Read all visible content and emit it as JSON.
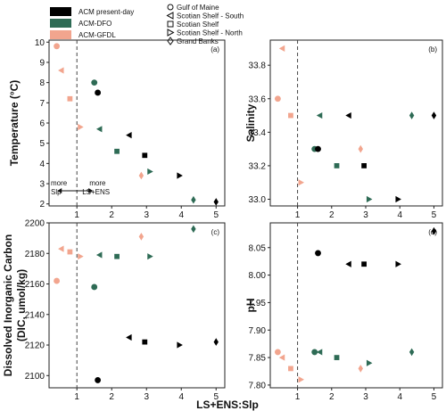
{
  "colors": {
    "ACM present-day": "#000000",
    "ACM-DFO": "#2e6b55",
    "ACM-GFDL": "#f2a58e"
  },
  "legend": {
    "models": [
      "ACM present-day",
      "ACM-DFO",
      "ACM-GFDL"
    ],
    "regions": [
      {
        "name": "Gulf of Maine",
        "marker": "circle"
      },
      {
        "name": "Scotian Shelf - South",
        "marker": "triangle-left"
      },
      {
        "name": "Scotian Shelf",
        "marker": "square"
      },
      {
        "name": "Scotian Shelf - North",
        "marker": "triangle-right"
      },
      {
        "name": "Grand Banks",
        "marker": "diamond"
      }
    ]
  },
  "annotation": {
    "left": "more\nSlp",
    "right": "more\nLS+ENS",
    "position": "panel (a), bottom-left, across the dashed line at x = 1"
  },
  "xlabel": "LS+ENS:Slp",
  "chart_data": [
    {
      "type": "scatter",
      "panel": "(a)",
      "ylabel": "Temperature (°C)",
      "xlim": [
        0.2,
        5.25
      ],
      "ylim": [
        1.9,
        10.1
      ],
      "xticks": [
        1,
        2,
        3,
        4,
        5
      ],
      "yticks": [
        2,
        3,
        4,
        5,
        6,
        7,
        8,
        9,
        10
      ],
      "vline": 1,
      "points": [
        {
          "model": "ACM-GFDL",
          "region": "Gulf of Maine",
          "x": 0.42,
          "y": 9.8
        },
        {
          "model": "ACM-GFDL",
          "region": "Scotian Shelf - South",
          "x": 0.55,
          "y": 8.6
        },
        {
          "model": "ACM-GFDL",
          "region": "Scotian Shelf",
          "x": 0.8,
          "y": 7.2
        },
        {
          "model": "ACM-GFDL",
          "region": "Scotian Shelf - North",
          "x": 1.1,
          "y": 5.8
        },
        {
          "model": "ACM-GFDL",
          "region": "Grand Banks",
          "x": 2.85,
          "y": 3.4
        },
        {
          "model": "ACM-DFO",
          "region": "Gulf of Maine",
          "x": 1.5,
          "y": 8.0
        },
        {
          "model": "ACM-DFO",
          "region": "Scotian Shelf - South",
          "x": 1.65,
          "y": 5.7
        },
        {
          "model": "ACM-DFO",
          "region": "Scotian Shelf",
          "x": 2.15,
          "y": 4.6
        },
        {
          "model": "ACM-DFO",
          "region": "Scotian Shelf - North",
          "x": 3.1,
          "y": 3.6
        },
        {
          "model": "ACM-DFO",
          "region": "Grand Banks",
          "x": 4.35,
          "y": 2.2
        },
        {
          "model": "ACM present-day",
          "region": "Gulf of Maine",
          "x": 1.6,
          "y": 7.5
        },
        {
          "model": "ACM present-day",
          "region": "Scotian Shelf - South",
          "x": 2.5,
          "y": 5.4
        },
        {
          "model": "ACM present-day",
          "region": "Scotian Shelf",
          "x": 2.95,
          "y": 4.4
        },
        {
          "model": "ACM present-day",
          "region": "Scotian Shelf - North",
          "x": 3.95,
          "y": 3.4
        },
        {
          "model": "ACM present-day",
          "region": "Grand Banks",
          "x": 5.0,
          "y": 2.1
        }
      ]
    },
    {
      "type": "scatter",
      "panel": "(b)",
      "ylabel": "Salinity",
      "xlim": [
        0.2,
        5.25
      ],
      "ylim": [
        32.96,
        33.95
      ],
      "xticks": [
        1,
        2,
        3,
        4,
        5
      ],
      "yticks": [
        33.0,
        33.2,
        33.4,
        33.6,
        33.8
      ],
      "vline": 1,
      "points": [
        {
          "model": "ACM-GFDL",
          "region": "Scotian Shelf - South",
          "x": 0.55,
          "y": 33.9
        },
        {
          "model": "ACM-GFDL",
          "region": "Gulf of Maine",
          "x": 0.42,
          "y": 33.6
        },
        {
          "model": "ACM-GFDL",
          "region": "Scotian Shelf",
          "x": 0.8,
          "y": 33.5
        },
        {
          "model": "ACM-GFDL",
          "region": "Grand Banks",
          "x": 2.85,
          "y": 33.3
        },
        {
          "model": "ACM-GFDL",
          "region": "Scotian Shelf - North",
          "x": 1.1,
          "y": 33.1
        },
        {
          "model": "ACM-DFO",
          "region": "Scotian Shelf - South",
          "x": 1.65,
          "y": 33.5
        },
        {
          "model": "ACM-DFO",
          "region": "Gulf of Maine",
          "x": 1.5,
          "y": 33.3
        },
        {
          "model": "ACM-DFO",
          "region": "Scotian Shelf",
          "x": 2.15,
          "y": 33.2
        },
        {
          "model": "ACM-DFO",
          "region": "Scotian Shelf - North",
          "x": 3.1,
          "y": 33.0
        },
        {
          "model": "ACM-DFO",
          "region": "Grand Banks",
          "x": 4.35,
          "y": 33.5
        },
        {
          "model": "ACM present-day",
          "region": "Scotian Shelf - South",
          "x": 2.5,
          "y": 33.5
        },
        {
          "model": "ACM present-day",
          "region": "Gulf of Maine",
          "x": 1.6,
          "y": 33.3
        },
        {
          "model": "ACM present-day",
          "region": "Scotian Shelf",
          "x": 2.95,
          "y": 33.2
        },
        {
          "model": "ACM present-day",
          "region": "Scotian Shelf - North",
          "x": 3.95,
          "y": 33.0
        },
        {
          "model": "ACM present-day",
          "region": "Grand Banks",
          "x": 5.0,
          "y": 33.5
        }
      ]
    },
    {
      "type": "scatter",
      "panel": "(c)",
      "ylabel": "Dissolved Inorganic Carbon (DIC, umol/kg)",
      "ylabel_lines": [
        "Dissolved Inorganic Carbon",
        "(DIC, umol/kg)"
      ],
      "xlim": [
        0.2,
        5.25
      ],
      "ylim": [
        2092,
        2200
      ],
      "xticks": [
        1,
        2,
        3,
        4,
        5
      ],
      "yticks": [
        2100,
        2120,
        2140,
        2160,
        2180,
        2200
      ],
      "vline": 1,
      "points": [
        {
          "model": "ACM-GFDL",
          "region": "Scotian Shelf - South",
          "x": 0.55,
          "y": 2183
        },
        {
          "model": "ACM-GFDL",
          "region": "Scotian Shelf",
          "x": 0.8,
          "y": 2181
        },
        {
          "model": "ACM-GFDL",
          "region": "Scotian Shelf - North",
          "x": 1.1,
          "y": 2178
        },
        {
          "model": "ACM-GFDL",
          "region": "Gulf of Maine",
          "x": 0.42,
          "y": 2162
        },
        {
          "model": "ACM-GFDL",
          "region": "Grand Banks",
          "x": 2.85,
          "y": 2191
        },
        {
          "model": "ACM-DFO",
          "region": "Scotian Shelf - South",
          "x": 1.65,
          "y": 2179
        },
        {
          "model": "ACM-DFO",
          "region": "Scotian Shelf",
          "x": 2.15,
          "y": 2178
        },
        {
          "model": "ACM-DFO",
          "region": "Scotian Shelf - North",
          "x": 3.1,
          "y": 2178
        },
        {
          "model": "ACM-DFO",
          "region": "Gulf of Maine",
          "x": 1.5,
          "y": 2158
        },
        {
          "model": "ACM-DFO",
          "region": "Grand Banks",
          "x": 4.35,
          "y": 2196
        },
        {
          "model": "ACM present-day",
          "region": "Scotian Shelf - South",
          "x": 2.5,
          "y": 2125
        },
        {
          "model": "ACM present-day",
          "region": "Scotian Shelf",
          "x": 2.95,
          "y": 2122
        },
        {
          "model": "ACM present-day",
          "region": "Scotian Shelf - North",
          "x": 3.95,
          "y": 2120
        },
        {
          "model": "ACM present-day",
          "region": "Grand Banks",
          "x": 5.0,
          "y": 2122
        },
        {
          "model": "ACM present-day",
          "region": "Gulf of Maine",
          "x": 1.6,
          "y": 2097
        }
      ]
    },
    {
      "type": "scatter",
      "panel": "(d)",
      "ylabel": "pH",
      "xlim": [
        0.2,
        5.25
      ],
      "ylim": [
        7.795,
        8.095
      ],
      "xticks": [
        1,
        2,
        3,
        4,
        5
      ],
      "yticks": [
        7.8,
        7.85,
        7.9,
        7.95,
        8.0,
        8.05
      ],
      "vline": 1,
      "points": [
        {
          "model": "ACM-GFDL",
          "region": "Gulf of Maine",
          "x": 0.42,
          "y": 7.86
        },
        {
          "model": "ACM-GFDL",
          "region": "Scotian Shelf - South",
          "x": 0.55,
          "y": 7.85
        },
        {
          "model": "ACM-GFDL",
          "region": "Scotian Shelf",
          "x": 0.8,
          "y": 7.83
        },
        {
          "model": "ACM-GFDL",
          "region": "Scotian Shelf - North",
          "x": 1.1,
          "y": 7.81
        },
        {
          "model": "ACM-GFDL",
          "region": "Grand Banks",
          "x": 2.85,
          "y": 7.83
        },
        {
          "model": "ACM-DFO",
          "region": "Gulf of Maine",
          "x": 1.5,
          "y": 7.86
        },
        {
          "model": "ACM-DFO",
          "region": "Scotian Shelf - South",
          "x": 1.65,
          "y": 7.86
        },
        {
          "model": "ACM-DFO",
          "region": "Scotian Shelf",
          "x": 2.15,
          "y": 7.85
        },
        {
          "model": "ACM-DFO",
          "region": "Scotian Shelf - North",
          "x": 3.1,
          "y": 7.84
        },
        {
          "model": "ACM-DFO",
          "region": "Grand Banks",
          "x": 4.35,
          "y": 7.86
        },
        {
          "model": "ACM present-day",
          "region": "Gulf of Maine",
          "x": 1.6,
          "y": 8.04
        },
        {
          "model": "ACM present-day",
          "region": "Scotian Shelf - South",
          "x": 2.5,
          "y": 8.02
        },
        {
          "model": "ACM present-day",
          "region": "Scotian Shelf",
          "x": 2.95,
          "y": 8.02
        },
        {
          "model": "ACM present-day",
          "region": "Scotian Shelf - North",
          "x": 3.95,
          "y": 8.02
        },
        {
          "model": "ACM present-day",
          "region": "Grand Banks",
          "x": 5.0,
          "y": 8.08
        }
      ]
    }
  ]
}
